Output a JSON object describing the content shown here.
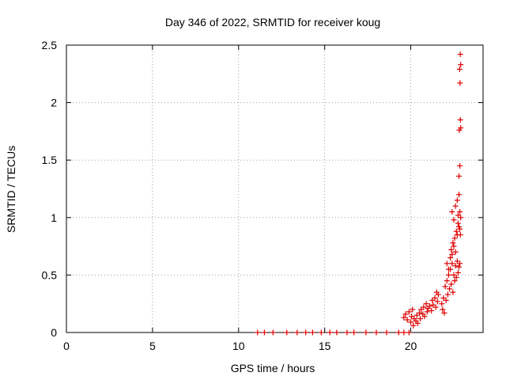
{
  "chart_data": {
    "type": "scatter",
    "title": "Day 346 of 2022, SRMTID for receiver koug",
    "xlabel": "GPS time / hours",
    "ylabel": "SRMTID / TECUs",
    "xlim": [
      0,
      24.2
    ],
    "ylim": [
      0,
      2.5
    ],
    "x_ticks": [
      "0",
      "5",
      "10",
      "15",
      "20"
    ],
    "x_tick_values": [
      0,
      5,
      10,
      15,
      20
    ],
    "y_ticks": [
      "0",
      "0.5",
      "1",
      "1.5",
      "2",
      "2.5"
    ],
    "y_tick_values": [
      0,
      0.5,
      1,
      1.5,
      2,
      2.5
    ],
    "grid": true,
    "marker": "+",
    "marker_color": "#dd0000",
    "series": [
      {
        "x": [
          11.1,
          11.5,
          12.0,
          12.8,
          13.4,
          13.9,
          14.3,
          14.8,
          15.3,
          15.7,
          16.3,
          16.7,
          17.4,
          18.0,
          18.6,
          19.3,
          19.6,
          19.9,
          19.6,
          19.7,
          19.8,
          19.9,
          20.0,
          20.05,
          20.1,
          20.15,
          20.2,
          20.3,
          20.35,
          20.4,
          20.5,
          20.55,
          20.6,
          20.7,
          20.75,
          20.8,
          20.9,
          20.95,
          21.0,
          21.1,
          21.2,
          21.25,
          21.3,
          21.4,
          21.45,
          21.5,
          21.55,
          21.6,
          21.8,
          21.85,
          21.9,
          21.95,
          22.0,
          22.05,
          22.1,
          22.15,
          22.2,
          22.25,
          22.3,
          22.35,
          22.4,
          22.45,
          22.5,
          22.55,
          22.6,
          22.65,
          22.7,
          22.75,
          22.8,
          22.85,
          22.1,
          22.2,
          22.3,
          22.35,
          22.4,
          22.45,
          22.5,
          22.55,
          22.6,
          22.65,
          22.7,
          22.75,
          22.8,
          22.85,
          22.88,
          22.4,
          22.5,
          22.6,
          22.7,
          22.75,
          22.8,
          22.85,
          22.9,
          22.8,
          22.85,
          22.9,
          22.88,
          22.82,
          22.86,
          22.84,
          22.9,
          22.88
        ],
        "y": [
          0,
          0,
          0,
          0,
          0,
          0,
          0,
          0,
          0,
          0,
          0,
          0,
          0,
          0,
          0,
          0,
          0,
          0,
          0.13,
          0.16,
          0.11,
          0.18,
          0.09,
          0.14,
          0.2,
          0.06,
          0.12,
          0.1,
          0.15,
          0.08,
          0.17,
          0.12,
          0.2,
          0.16,
          0.22,
          0.14,
          0.25,
          0.18,
          0.21,
          0.23,
          0.19,
          0.28,
          0.24,
          0.3,
          0.22,
          0.35,
          0.27,
          0.33,
          0.25,
          0.2,
          0.3,
          0.17,
          0.4,
          0.28,
          0.45,
          0.33,
          0.5,
          0.38,
          0.55,
          0.42,
          0.6,
          0.35,
          0.5,
          0.45,
          0.58,
          0.48,
          0.62,
          0.52,
          0.57,
          0.6,
          0.6,
          0.55,
          0.65,
          0.72,
          0.68,
          0.78,
          0.75,
          0.82,
          0.7,
          0.88,
          0.85,
          0.95,
          0.92,
          0.9,
          0.85,
          1.05,
          0.98,
          1.1,
          1.15,
          1.02,
          1.2,
          1.05,
          1.0,
          1.36,
          1.45,
          1.78,
          1.85,
          1.76,
          2.17,
          2.29,
          2.33,
          2.42
        ]
      }
    ]
  }
}
